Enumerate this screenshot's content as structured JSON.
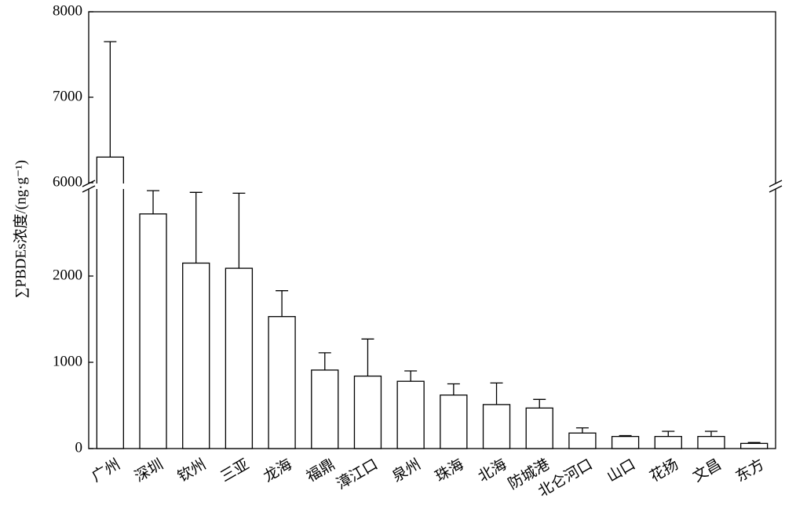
{
  "chart_data": {
    "type": "bar",
    "y_label": "∑PBDEs浓度/(ng·g⁻¹)",
    "categories": [
      "广州",
      "深圳",
      "钦州",
      "三亚",
      "龙海",
      "福鼎",
      "漳江口",
      "泉州",
      "珠海",
      "北海",
      "防城港",
      "北仑河口",
      "山口",
      "花扬",
      "文昌",
      "东方"
    ],
    "values": [
      6300,
      2720,
      2150,
      2090,
      1530,
      910,
      840,
      780,
      620,
      510,
      470,
      180,
      140,
      140,
      140,
      60
    ],
    "errors": [
      1350,
      270,
      820,
      870,
      300,
      200,
      430,
      120,
      130,
      250,
      100,
      60,
      10,
      60,
      60,
      10
    ],
    "color": "#ffffff",
    "ylim": [
      0,
      8000
    ],
    "y_break": [
      3000,
      6000
    ],
    "yticks": [
      0,
      1000,
      2000,
      6000,
      7000,
      8000
    ]
  }
}
